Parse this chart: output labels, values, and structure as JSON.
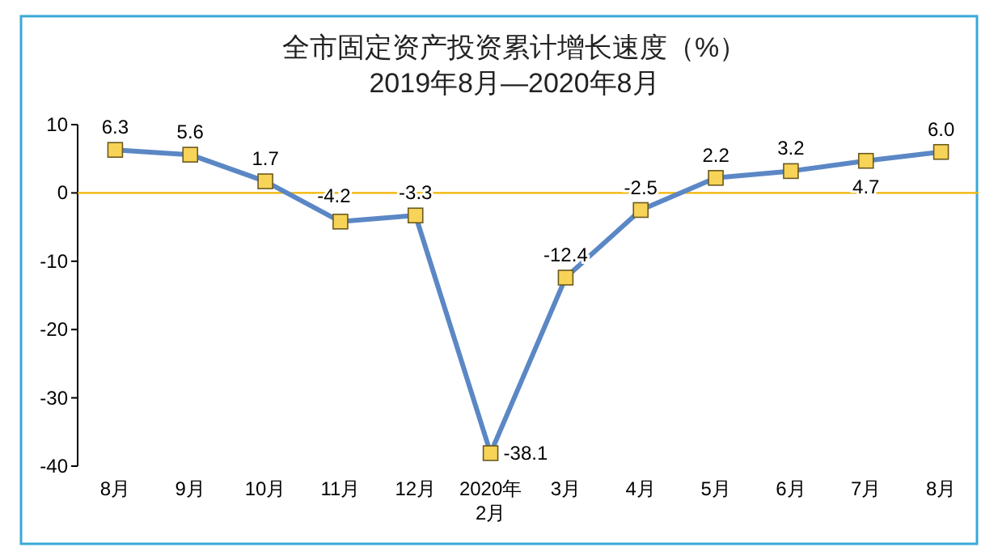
{
  "chart_data": {
    "type": "line",
    "title": "全市固定资产投资累计增长速度（%）",
    "subtitle": "2019年8月—2020年8月",
    "categories": [
      "8月",
      "9月",
      "10月",
      "11月",
      "12月",
      "2020年\n2月",
      "3月",
      "4月",
      "5月",
      "6月",
      "7月",
      "8月"
    ],
    "series": [
      {
        "color": "#5b87c5",
        "values": [
          6.3,
          5.6,
          1.7,
          -4.2,
          -3.3,
          -38.1,
          -12.4,
          -2.5,
          2.2,
          3.2,
          4.7,
          6.0
        ]
      }
    ],
    "value_labels": [
      "6.3",
      "5.6",
      "1.7",
      "-4.2",
      "-3.3",
      "-38.1",
      "-12.4",
      "-2.5",
      "2.2",
      "3.2",
      "4.7",
      "6.0"
    ],
    "ref_lines": [
      {
        "axis": "y",
        "value": 0,
        "color": "#f0b400"
      }
    ],
    "ylim": [
      -40,
      10
    ],
    "yticks": [
      -40,
      -30,
      -20,
      -10,
      0,
      10
    ],
    "grid": false,
    "marker": "square",
    "line_style": "solid"
  }
}
